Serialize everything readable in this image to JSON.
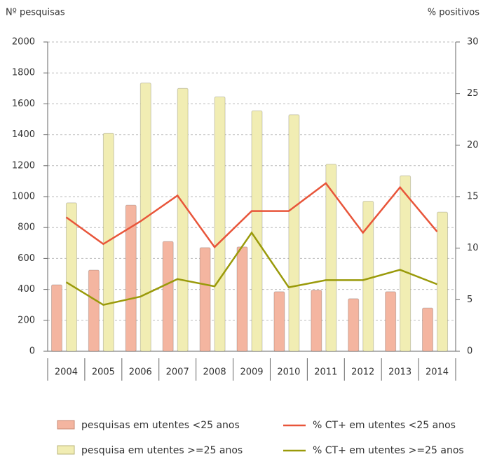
{
  "chart_data": {
    "type": "bar",
    "y_label": "Nº pesquisas",
    "y2_label": "% positivos",
    "categories": [
      "2004",
      "2005",
      "2006",
      "2007",
      "2008",
      "2009",
      "2010",
      "2011",
      "2012",
      "2013",
      "2014"
    ],
    "series": [
      {
        "name": "pesquisas em utentes <25 anos",
        "type": "bar",
        "color": "#f4b5a0",
        "values": [
          430,
          525,
          945,
          710,
          670,
          675,
          385,
          395,
          340,
          385,
          280
        ]
      },
      {
        "name": "pesquisa em utentes >=25 anos",
        "type": "bar",
        "color": "#f1edb3",
        "values": [
          960,
          1410,
          1735,
          1700,
          1645,
          1555,
          1530,
          1210,
          970,
          1135,
          900
        ]
      },
      {
        "name": "% CT+ em utentes <25 anos",
        "type": "line",
        "axis": "y2",
        "color": "#e8553a",
        "values": [
          13.0,
          10.4,
          12.6,
          15.1,
          10.1,
          13.6,
          13.6,
          16.3,
          11.5,
          15.9,
          11.6
        ]
      },
      {
        "name": "% CT+ em utentes >=25 anos",
        "type": "line",
        "axis": "y2",
        "color": "#9a9a0a",
        "values": [
          6.7,
          4.5,
          5.3,
          7.0,
          6.3,
          11.5,
          6.2,
          6.9,
          6.9,
          7.9,
          6.5
        ]
      }
    ],
    "ylim": [
      0,
      2000
    ],
    "yticks": [
      0,
      200,
      400,
      600,
      800,
      1000,
      1200,
      1400,
      1600,
      1800,
      2000
    ],
    "y2lim": [
      0,
      30
    ],
    "y2ticks": [
      0,
      5,
      10,
      15,
      20,
      25,
      30
    ],
    "grid": true
  }
}
